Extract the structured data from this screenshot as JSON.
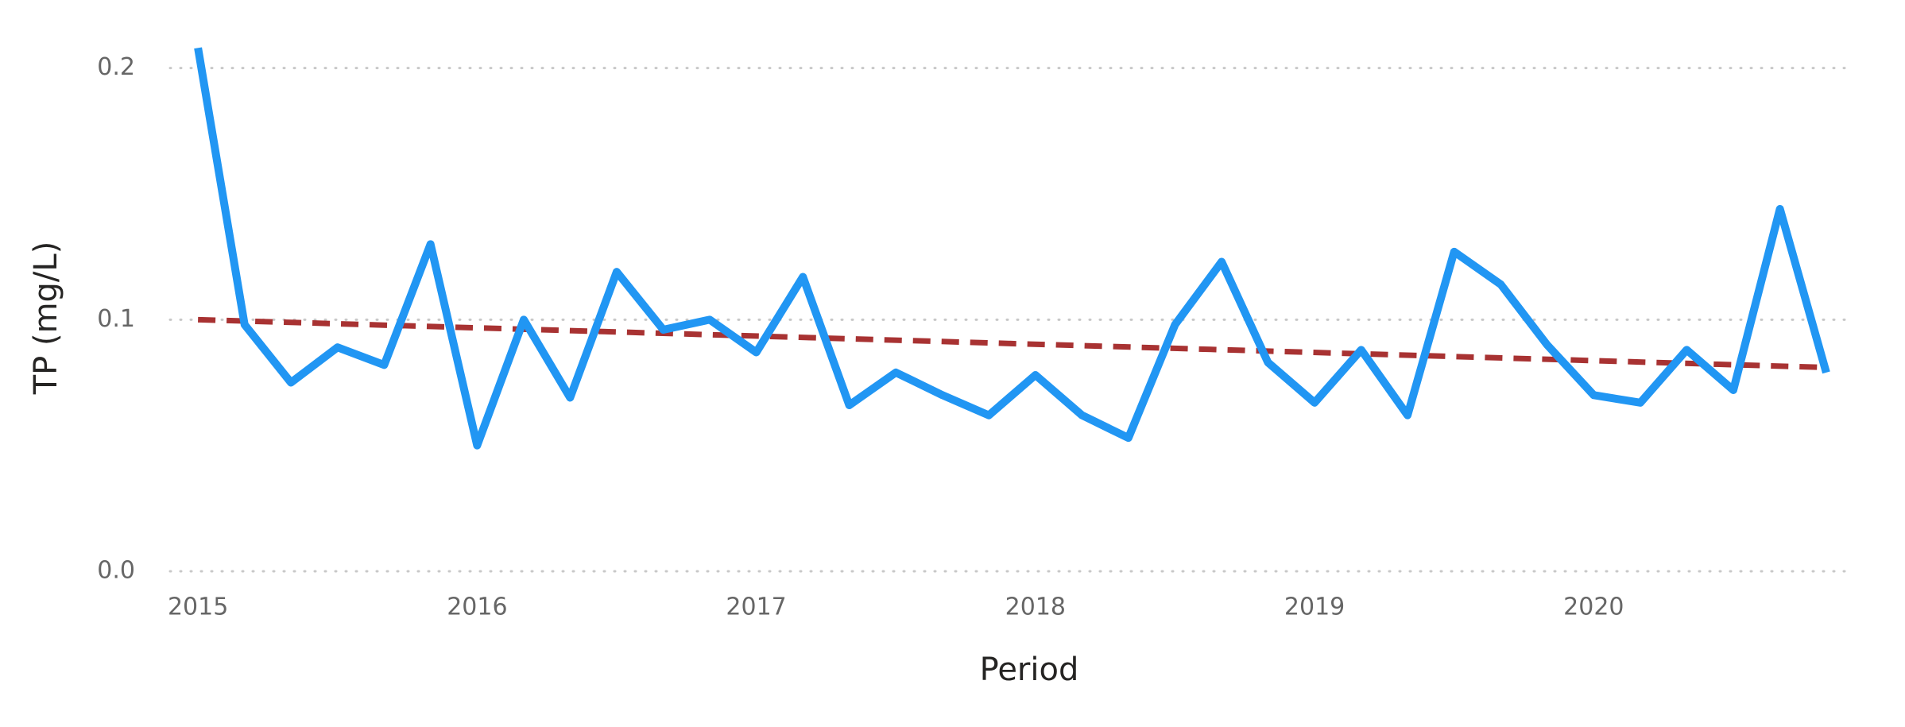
{
  "chart_data": {
    "type": "line",
    "x_label": "Period",
    "y_label": "TP (mg/L)",
    "x": [
      2015,
      2015.167,
      2015.333,
      2015.5,
      2015.667,
      2015.833,
      2016,
      2016.167,
      2016.333,
      2016.5,
      2016.667,
      2016.833,
      2017,
      2017.167,
      2017.333,
      2017.5,
      2017.667,
      2017.833,
      2018,
      2018.167,
      2018.333,
      2018.5,
      2018.667,
      2018.833,
      2019,
      2019.167,
      2019.333,
      2019.5,
      2019.667,
      2019.833,
      2020,
      2020.167,
      2020.333,
      2020.5,
      2020.667,
      2020.833
    ],
    "series": [
      {
        "color": "#2196f3",
        "values": [
          0.208,
          0.098,
          0.075,
          0.089,
          0.082,
          0.13,
          0.05,
          0.1,
          0.069,
          0.119,
          0.096,
          0.1,
          0.087,
          0.117,
          0.066,
          0.079,
          0.07,
          0.062,
          0.078,
          0.062,
          0.053,
          0.098,
          0.123,
          0.083,
          0.067,
          0.088,
          0.062,
          0.127,
          0.114,
          0.09,
          0.07,
          0.067,
          0.088,
          0.072,
          0.144,
          0.079
        ]
      }
    ],
    "trend": {
      "color": "#a83232",
      "x": [
        2015,
        2020.833
      ],
      "values": [
        0.1,
        0.081
      ]
    },
    "xlim": [
      2014.9,
      2020.93
    ],
    "xticks": [
      2015,
      2016,
      2017,
      2018,
      2019,
      2020
    ],
    "ylim": [
      0,
      0.21
    ],
    "yticks": [
      {
        "value": 0,
        "label": "0.0"
      },
      0.1,
      0.2
    ],
    "grid": true
  }
}
